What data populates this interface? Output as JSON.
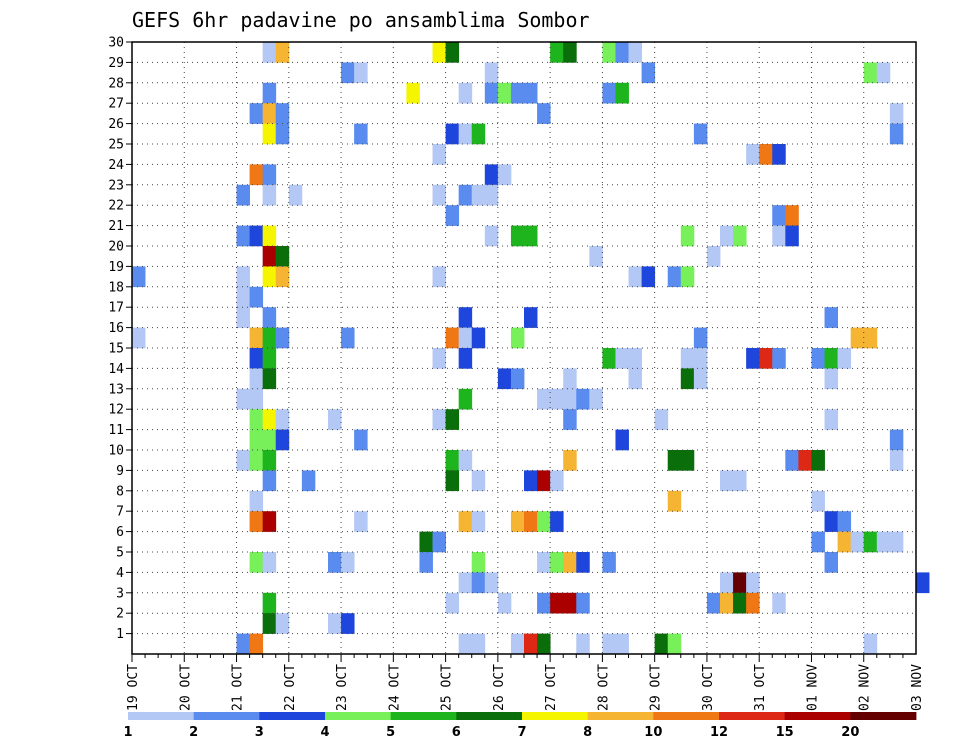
{
  "chart_data": {
    "type": "heatmap",
    "title": "GEFS 6hr padavine po ansamblima Sombor",
    "xlabel": "",
    "ylabel": "",
    "x_ticks": [
      "19 OCT",
      "20 OCT",
      "21 OCT",
      "22 OCT",
      "23 OCT",
      "24 OCT",
      "25 OCT",
      "26 OCT",
      "27 OCT",
      "28 OCT",
      "29 OCT",
      "30 OCT",
      "31 OCT",
      "01 NOV",
      "02 NOV",
      "03 NOV"
    ],
    "y_ticks": [
      "1",
      "2",
      "3",
      "4",
      "5",
      "6",
      "7",
      "8",
      "9",
      "10",
      "11",
      "12",
      "13",
      "14",
      "15",
      "16",
      "17",
      "18",
      "19",
      "20",
      "21",
      "22",
      "23",
      "24",
      "25",
      "26",
      "27",
      "28",
      "29",
      "30"
    ],
    "steps_per_day": 4,
    "xlim": [
      0,
      60
    ],
    "ylim": [
      0,
      30
    ],
    "grid": true,
    "legend_position": "bottom",
    "colorbar": {
      "labels": [
        "1",
        "2",
        "3",
        "4",
        "5",
        "6",
        "7",
        "8",
        "10",
        "12",
        "15",
        "20"
      ],
      "colors": [
        "#b4c8f5",
        "#5a8cf0",
        "#1e46dc",
        "#78f05a",
        "#1eb41e",
        "#0a6e0a",
        "#f5f500",
        "#f5b432",
        "#f07814",
        "#dc2814",
        "#aa0000",
        "#640000"
      ]
    },
    "cells": [
      [
        10,
        30,
        1
      ],
      [
        11,
        30,
        8
      ],
      [
        23,
        30,
        7
      ],
      [
        24,
        30,
        6
      ],
      [
        32,
        30,
        5
      ],
      [
        33,
        30,
        6
      ],
      [
        36,
        30,
        4
      ],
      [
        37,
        30,
        2
      ],
      [
        38,
        30,
        1
      ],
      [
        16,
        29,
        2
      ],
      [
        17,
        29,
        1
      ],
      [
        27,
        29,
        1
      ],
      [
        39,
        29,
        2
      ],
      [
        56,
        29,
        4
      ],
      [
        57,
        29,
        1
      ],
      [
        10,
        28,
        2
      ],
      [
        21,
        28,
        7
      ],
      [
        25,
        28,
        1
      ],
      [
        27,
        28,
        2
      ],
      [
        28,
        28,
        4
      ],
      [
        29,
        28,
        2
      ],
      [
        30,
        28,
        2
      ],
      [
        36,
        28,
        2
      ],
      [
        37,
        28,
        5
      ],
      [
        9,
        27,
        2
      ],
      [
        10,
        27,
        8
      ],
      [
        11,
        27,
        2
      ],
      [
        31,
        27,
        2
      ],
      [
        58,
        27,
        1
      ],
      [
        10,
        26,
        7
      ],
      [
        11,
        26,
        2
      ],
      [
        17,
        26,
        2
      ],
      [
        24,
        26,
        3
      ],
      [
        25,
        26,
        1
      ],
      [
        26,
        26,
        5
      ],
      [
        43,
        26,
        2
      ],
      [
        58,
        26,
        2
      ],
      [
        23,
        25,
        1
      ],
      [
        47,
        25,
        1
      ],
      [
        48,
        25,
        9
      ],
      [
        49,
        25,
        3
      ],
      [
        9,
        24,
        9
      ],
      [
        10,
        24,
        2
      ],
      [
        27,
        24,
        3
      ],
      [
        28,
        24,
        1
      ],
      [
        8,
        23,
        2
      ],
      [
        10,
        23,
        1
      ],
      [
        12,
        23,
        1
      ],
      [
        23,
        23,
        1
      ],
      [
        25,
        23,
        2
      ],
      [
        26,
        23,
        1
      ],
      [
        27,
        23,
        1
      ],
      [
        24,
        22,
        2
      ],
      [
        49,
        22,
        2
      ],
      [
        50,
        22,
        9
      ],
      [
        8,
        21,
        2
      ],
      [
        9,
        21,
        3
      ],
      [
        10,
        21,
        7
      ],
      [
        27,
        21,
        1
      ],
      [
        29,
        21,
        5
      ],
      [
        30,
        21,
        5
      ],
      [
        42,
        21,
        4
      ],
      [
        45,
        21,
        1
      ],
      [
        46,
        21,
        4
      ],
      [
        49,
        21,
        1
      ],
      [
        50,
        21,
        3
      ],
      [
        10,
        20,
        11
      ],
      [
        11,
        20,
        6
      ],
      [
        35,
        20,
        1
      ],
      [
        44,
        20,
        1
      ],
      [
        0,
        19,
        2
      ],
      [
        8,
        19,
        1
      ],
      [
        10,
        19,
        7
      ],
      [
        11,
        19,
        8
      ],
      [
        23,
        19,
        1
      ],
      [
        38,
        19,
        1
      ],
      [
        39,
        19,
        3
      ],
      [
        41,
        19,
        2
      ],
      [
        42,
        19,
        4
      ],
      [
        8,
        18,
        1
      ],
      [
        9,
        18,
        2
      ],
      [
        8,
        17,
        1
      ],
      [
        10,
        17,
        2
      ],
      [
        25,
        17,
        3
      ],
      [
        30,
        17,
        3
      ],
      [
        53,
        17,
        2
      ],
      [
        0,
        16,
        1
      ],
      [
        9,
        16,
        8
      ],
      [
        10,
        16,
        5
      ],
      [
        11,
        16,
        2
      ],
      [
        16,
        16,
        2
      ],
      [
        24,
        16,
        9
      ],
      [
        25,
        16,
        1
      ],
      [
        26,
        16,
        3
      ],
      [
        29,
        16,
        4
      ],
      [
        43,
        16,
        2
      ],
      [
        55,
        16,
        8
      ],
      [
        56,
        16,
        8
      ],
      [
        9,
        15,
        3
      ],
      [
        10,
        15,
        5
      ],
      [
        23,
        15,
        1
      ],
      [
        25,
        15,
        3
      ],
      [
        36,
        15,
        5
      ],
      [
        37,
        15,
        1
      ],
      [
        38,
        15,
        1
      ],
      [
        42,
        15,
        1
      ],
      [
        43,
        15,
        1
      ],
      [
        47,
        15,
        3
      ],
      [
        48,
        15,
        10
      ],
      [
        49,
        15,
        2
      ],
      [
        52,
        15,
        2
      ],
      [
        53,
        15,
        5
      ],
      [
        54,
        15,
        1
      ],
      [
        9,
        14,
        1
      ],
      [
        10,
        14,
        6
      ],
      [
        28,
        14,
        3
      ],
      [
        29,
        14,
        2
      ],
      [
        33,
        14,
        1
      ],
      [
        38,
        14,
        1
      ],
      [
        42,
        14,
        6
      ],
      [
        43,
        14,
        1
      ],
      [
        53,
        14,
        1
      ],
      [
        8,
        13,
        1
      ],
      [
        9,
        13,
        1
      ],
      [
        25,
        13,
        5
      ],
      [
        31,
        13,
        1
      ],
      [
        32,
        13,
        1
      ],
      [
        33,
        13,
        1
      ],
      [
        34,
        13,
        2
      ],
      [
        35,
        13,
        1
      ],
      [
        9,
        12,
        4
      ],
      [
        10,
        12,
        7
      ],
      [
        11,
        12,
        1
      ],
      [
        15,
        12,
        1
      ],
      [
        23,
        12,
        1
      ],
      [
        24,
        12,
        6
      ],
      [
        33,
        12,
        2
      ],
      [
        40,
        12,
        1
      ],
      [
        53,
        12,
        1
      ],
      [
        9,
        11,
        4
      ],
      [
        10,
        11,
        4
      ],
      [
        11,
        11,
        3
      ],
      [
        17,
        11,
        2
      ],
      [
        37,
        11,
        3
      ],
      [
        58,
        11,
        2
      ],
      [
        8,
        10,
        1
      ],
      [
        9,
        10,
        4
      ],
      [
        10,
        10,
        5
      ],
      [
        24,
        10,
        5
      ],
      [
        25,
        10,
        1
      ],
      [
        33,
        10,
        8
      ],
      [
        41,
        10,
        6
      ],
      [
        42,
        10,
        6
      ],
      [
        50,
        10,
        2
      ],
      [
        51,
        10,
        10
      ],
      [
        52,
        10,
        6
      ],
      [
        58,
        10,
        1
      ],
      [
        10,
        9,
        2
      ],
      [
        13,
        9,
        2
      ],
      [
        24,
        9,
        6
      ],
      [
        26,
        9,
        1
      ],
      [
        30,
        9,
        3
      ],
      [
        31,
        9,
        11
      ],
      [
        32,
        9,
        1
      ],
      [
        45,
        9,
        1
      ],
      [
        46,
        9,
        1
      ],
      [
        9,
        8,
        1
      ],
      [
        41,
        8,
        8
      ],
      [
        52,
        8,
        1
      ],
      [
        9,
        7,
        9
      ],
      [
        10,
        7,
        11
      ],
      [
        17,
        7,
        1
      ],
      [
        25,
        7,
        8
      ],
      [
        26,
        7,
        1
      ],
      [
        29,
        7,
        8
      ],
      [
        30,
        7,
        9
      ],
      [
        31,
        7,
        4
      ],
      [
        32,
        7,
        3
      ],
      [
        53,
        7,
        3
      ],
      [
        54,
        7,
        2
      ],
      [
        22,
        6,
        6
      ],
      [
        23,
        6,
        2
      ],
      [
        52,
        6,
        2
      ],
      [
        54,
        6,
        8
      ],
      [
        55,
        6,
        1
      ],
      [
        56,
        6,
        5
      ],
      [
        57,
        6,
        1
      ],
      [
        58,
        6,
        1
      ],
      [
        9,
        5,
        4
      ],
      [
        10,
        5,
        1
      ],
      [
        15,
        5,
        2
      ],
      [
        16,
        5,
        1
      ],
      [
        22,
        5,
        2
      ],
      [
        26,
        5,
        4
      ],
      [
        31,
        5,
        1
      ],
      [
        32,
        5,
        4
      ],
      [
        33,
        5,
        8
      ],
      [
        34,
        5,
        3
      ],
      [
        36,
        5,
        2
      ],
      [
        53,
        5,
        2
      ],
      [
        25,
        4,
        1
      ],
      [
        26,
        4,
        2
      ],
      [
        27,
        4,
        1
      ],
      [
        45,
        4,
        1
      ],
      [
        46,
        4,
        12
      ],
      [
        47,
        4,
        1
      ],
      [
        60,
        4,
        3
      ],
      [
        10,
        3,
        5
      ],
      [
        24,
        3,
        1
      ],
      [
        28,
        3,
        1
      ],
      [
        31,
        3,
        2
      ],
      [
        32,
        3,
        11
      ],
      [
        33,
        3,
        11
      ],
      [
        34,
        3,
        2
      ],
      [
        44,
        3,
        2
      ],
      [
        45,
        3,
        8
      ],
      [
        46,
        3,
        6
      ],
      [
        47,
        3,
        9
      ],
      [
        49,
        3,
        1
      ],
      [
        10,
        2,
        6
      ],
      [
        11,
        2,
        1
      ],
      [
        15,
        2,
        1
      ],
      [
        16,
        2,
        3
      ],
      [
        8,
        1,
        2
      ],
      [
        9,
        1,
        9
      ],
      [
        25,
        1,
        1
      ],
      [
        26,
        1,
        1
      ],
      [
        29,
        1,
        1
      ],
      [
        30,
        1,
        10
      ],
      [
        31,
        1,
        6
      ],
      [
        34,
        1,
        1
      ],
      [
        36,
        1,
        1
      ],
      [
        37,
        1,
        1
      ],
      [
        40,
        1,
        6
      ],
      [
        41,
        1,
        4
      ],
      [
        56,
        1,
        1
      ]
    ]
  }
}
